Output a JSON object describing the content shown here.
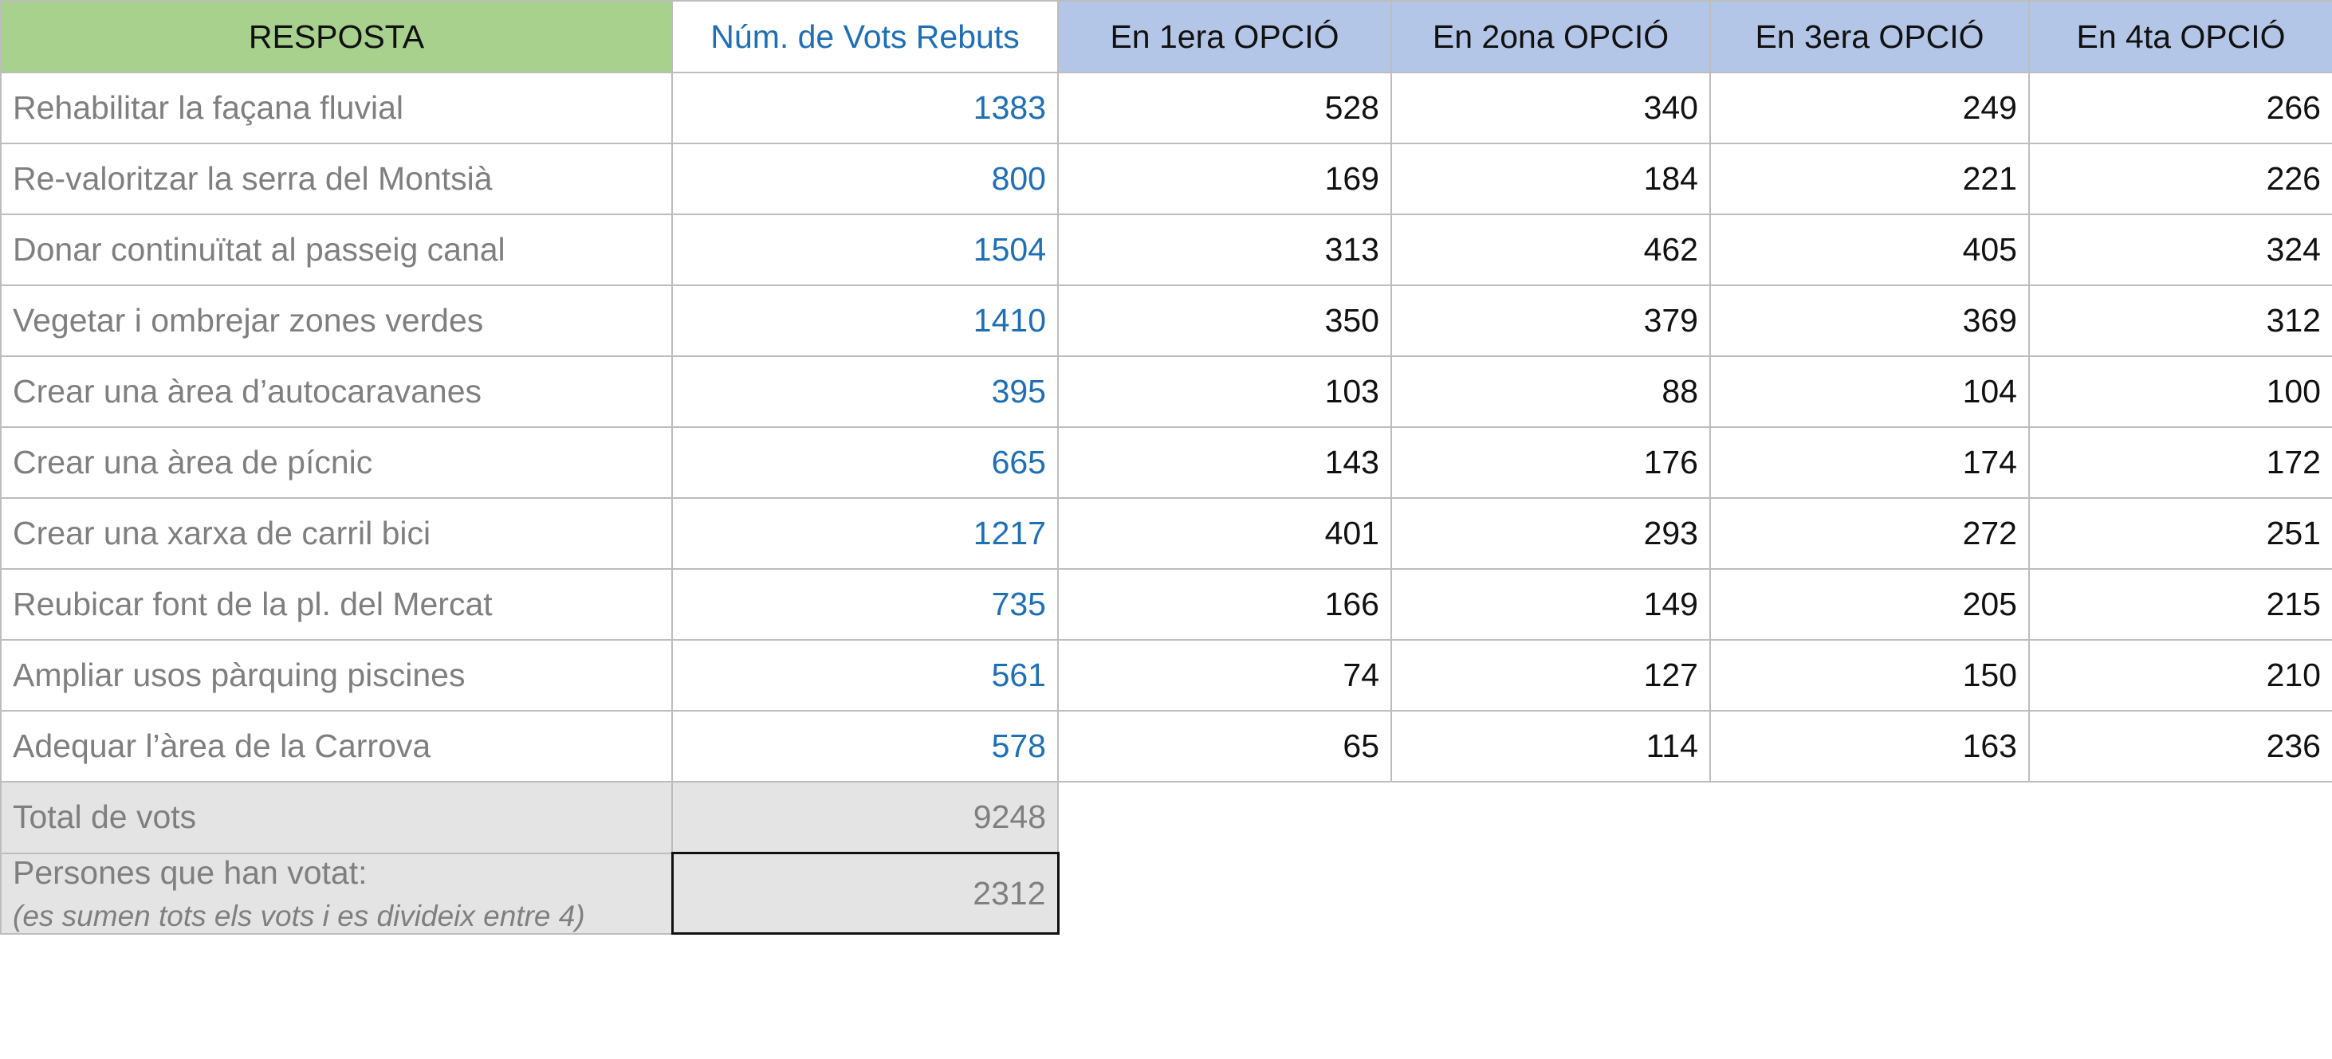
{
  "headers": {
    "resposta": "RESPOSTA",
    "votes": "Núm. de Vots Rebuts",
    "opt1": "En 1era OPCIÓ",
    "opt2": "En 2ona OPCIÓ",
    "opt3": "En 3era OPCIÓ",
    "opt4": "En 4ta OPCIÓ"
  },
  "rows": [
    {
      "label": "Rehabilitar la façana fluvial",
      "votes": "1383",
      "o1": "528",
      "o2": "340",
      "o3": "249",
      "o4": "266"
    },
    {
      "label": "Re-valoritzar la serra del Montsià",
      "votes": "800",
      "o1": "169",
      "o2": "184",
      "o3": "221",
      "o4": "226"
    },
    {
      "label": "Donar continuïtat al passeig canal",
      "votes": "1504",
      "o1": "313",
      "o2": "462",
      "o3": "405",
      "o4": "324"
    },
    {
      "label": "Vegetar i ombrejar zones verdes",
      "votes": "1410",
      "o1": "350",
      "o2": "379",
      "o3": "369",
      "o4": "312"
    },
    {
      "label": "Crear una àrea d’autocaravanes",
      "votes": "395",
      "o1": "103",
      "o2": "88",
      "o3": "104",
      "o4": "100"
    },
    {
      "label": "Crear una àrea de pícnic",
      "votes": "665",
      "o1": "143",
      "o2": "176",
      "o3": "174",
      "o4": "172"
    },
    {
      "label": "Crear una xarxa de carril bici",
      "votes": "1217",
      "o1": "401",
      "o2": "293",
      "o3": "272",
      "o4": "251"
    },
    {
      "label": "Reubicar font de la pl. del Mercat",
      "votes": "735",
      "o1": "166",
      "o2": "149",
      "o3": "205",
      "o4": "215"
    },
    {
      "label": "Ampliar usos pàrquing piscines",
      "votes": "561",
      "o1": "74",
      "o2": "127",
      "o3": "150",
      "o4": "210"
    },
    {
      "label": "Adequar l’àrea de la Carrova",
      "votes": "578",
      "o1": "65",
      "o2": "114",
      "o3": "163",
      "o4": "236"
    }
  ],
  "total": {
    "label": "Total de vots",
    "value": "9248"
  },
  "persons": {
    "label": "Persones que han votat:",
    "note": "(es sumen tots els vots i es divideix entre 4)",
    "value": "2312"
  },
  "colors": {
    "resposta_header": "#a9d18e",
    "option_header": "#b4c6e7",
    "votes_text": "#1f6fb5",
    "summary_fill": "#e4e4e4"
  }
}
